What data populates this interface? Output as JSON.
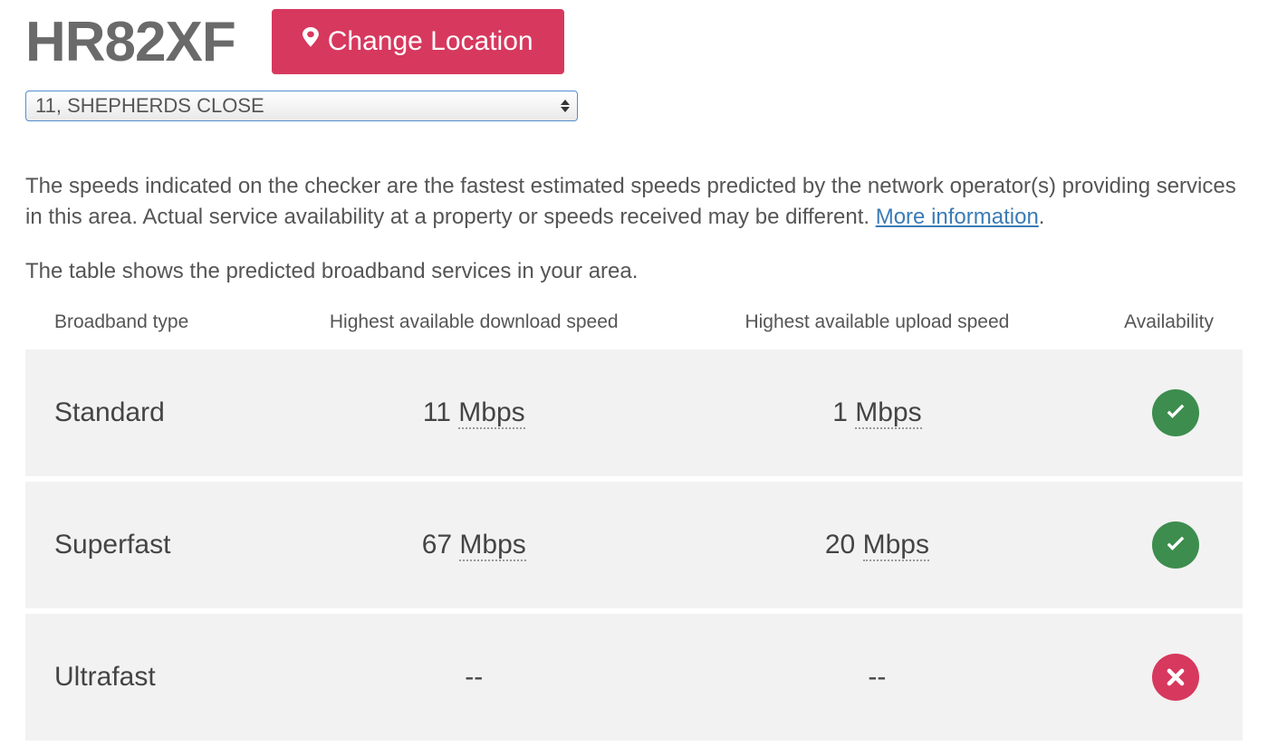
{
  "header": {
    "postcode": "HR82XF",
    "change_location_label": "Change Location"
  },
  "address_select": {
    "selected": "11, SHEPHERDS CLOSE"
  },
  "disclaimer": {
    "text_before_link": "The speeds indicated on the checker are the fastest estimated speeds predicted by the network operator(s) providing services in this area. Actual service availability at a property or speeds received may be different. ",
    "link_text": "More information",
    "text_after_link": "."
  },
  "table_intro": "The table shows the predicted broadband services in your area.",
  "table": {
    "columns": [
      "Broadband type",
      "Highest available download speed",
      "Highest available upload speed",
      "Availability"
    ],
    "unit_label": "Mbps",
    "no_value": "--",
    "rows": [
      {
        "type": "Standard",
        "download": "11",
        "upload": "1",
        "available": true
      },
      {
        "type": "Superfast",
        "download": "67",
        "upload": "20",
        "available": true
      },
      {
        "type": "Ultrafast",
        "download": null,
        "upload": null,
        "available": false
      }
    ]
  },
  "colors": {
    "accent_button": "#d7385e",
    "status_available": "#3d8d4e",
    "status_unavailable": "#d7385e",
    "link": "#3b7bb5",
    "row_bg": "#f2f2f2"
  }
}
